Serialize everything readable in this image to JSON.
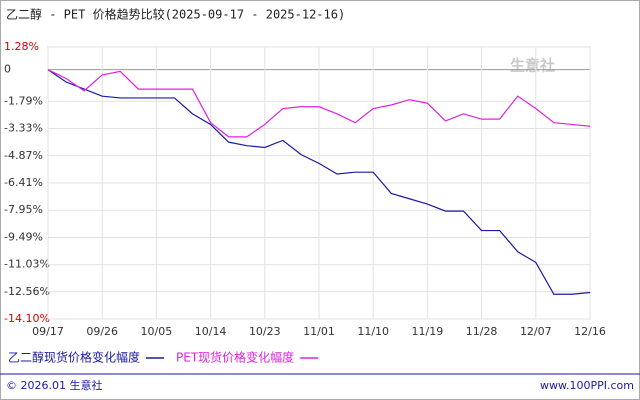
{
  "chart_data": {
    "type": "line",
    "title": "乙二醇 - PET 价格趋势比较(2025-09-17 - 2025-12-16)",
    "categories": [
      "09/17",
      null,
      null,
      "09/26",
      null,
      null,
      "10/05",
      null,
      null,
      "10/14",
      null,
      null,
      "10/23",
      null,
      null,
      "11/01",
      null,
      null,
      "11/10",
      null,
      null,
      "11/19",
      null,
      null,
      "11/28",
      null,
      null,
      "12/07",
      null,
      null,
      "12/16"
    ],
    "series": [
      {
        "name": "乙二醇现货价格变化幅度",
        "color": "#1a1aa6",
        "values": [
          0,
          -0.7,
          -1.1,
          -1.5,
          -1.6,
          -1.6,
          -1.6,
          -1.6,
          -2.5,
          -3.1,
          -4.1,
          -4.3,
          -4.4,
          -4.0,
          -4.8,
          -5.3,
          -5.9,
          -5.8,
          -5.8,
          -7.0,
          -7.3,
          -7.6,
          -8.0,
          -8.0,
          -9.1,
          -9.1,
          -10.3,
          -10.9,
          -12.7,
          -12.7,
          -12.6
        ]
      },
      {
        "name": "PET现货价格变化幅度",
        "color": "#e020e0",
        "values": [
          0,
          -0.5,
          -1.2,
          -0.3,
          -0.1,
          -1.1,
          -1.1,
          -1.1,
          -1.1,
          -3.0,
          -3.8,
          -3.8,
          -3.1,
          -2.2,
          -2.1,
          -2.1,
          -2.5,
          -3.0,
          -2.2,
          -2.0,
          -1.7,
          -1.9,
          -2.9,
          -2.5,
          -2.8,
          -2.8,
          -1.5,
          -2.2,
          -3.0,
          -3.1,
          -3.2
        ]
      }
    ],
    "ylim": [
      -14.1,
      1.28
    ],
    "yticks": [
      {
        "value": 1.28,
        "label": "1.28%"
      },
      0,
      {
        "value": -1.79,
        "label": "-1.79%"
      },
      {
        "value": -3.33,
        "label": "-3.33%"
      },
      {
        "value": -4.87,
        "label": "-4.87%"
      },
      {
        "value": -6.41,
        "label": "-6.41%"
      },
      {
        "value": -7.95,
        "label": "-7.95%"
      },
      {
        "value": -9.49,
        "label": "-9.49%"
      },
      {
        "value": -11.03,
        "label": "-11.03%"
      },
      {
        "value": -12.56,
        "label": "-12.56%"
      },
      {
        "value": -14.1,
        "label": "-14.10%"
      }
    ],
    "grid": true,
    "watermark": "生意社",
    "copyright": "© 2026.01 生意社",
    "website": "www.100PPI.com"
  }
}
